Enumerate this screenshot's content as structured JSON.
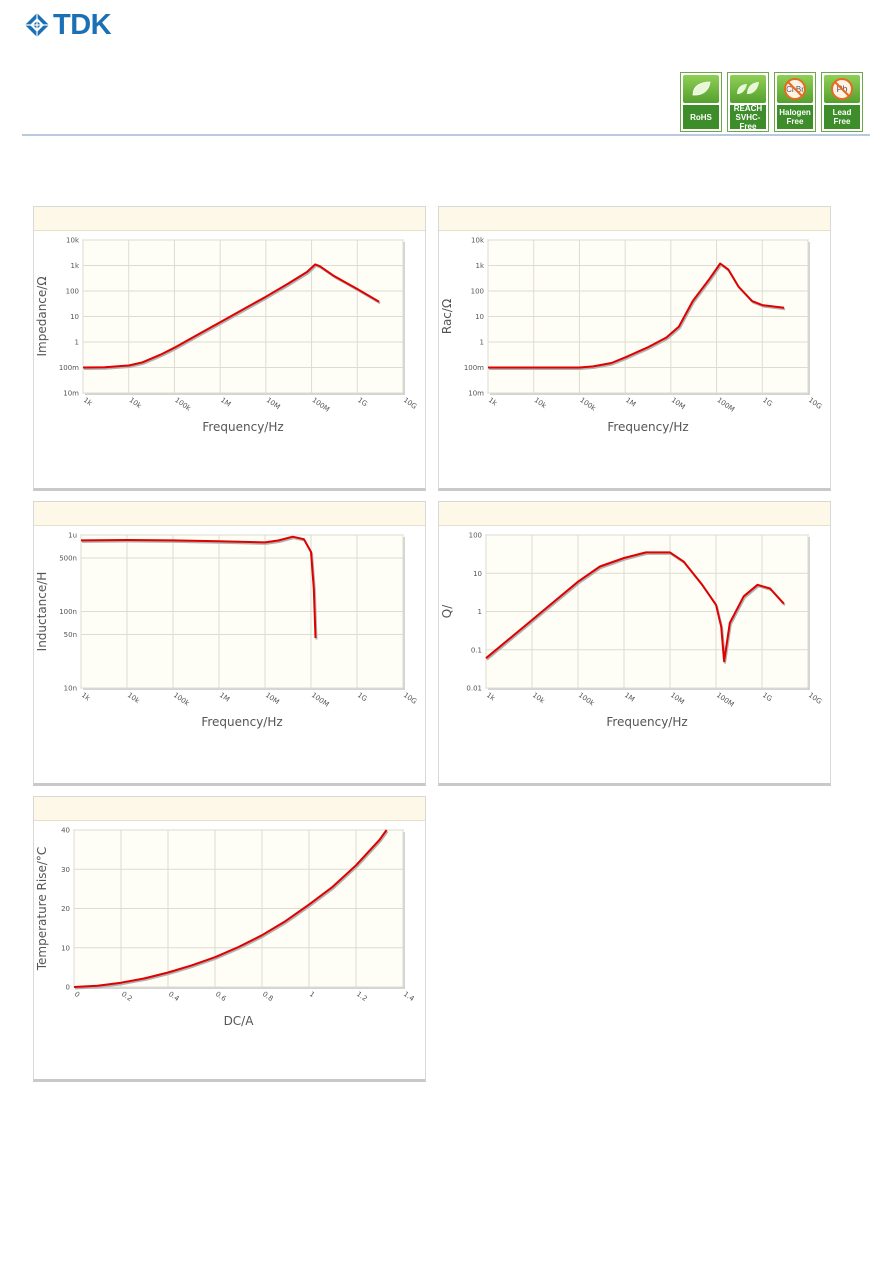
{
  "header": {
    "logo_text": "TDK",
    "brand_color": "#1a6fb5",
    "badges": [
      {
        "label": "RoHS",
        "icon": "leaf-icon"
      },
      {
        "label": "REACH\nSVHC-Free",
        "icon": "leaves-icon"
      },
      {
        "label": "Halogen\nFree",
        "icon": "no-halogen-icon",
        "icon_text": "Cl Br"
      },
      {
        "label": "Lead\nFree",
        "icon": "no-lead-icon",
        "icon_text": "Pb"
      }
    ]
  },
  "chart_data": [
    {
      "type": "line",
      "xscale": "log",
      "yscale": "log",
      "xlabel": "Frequency/Hz",
      "ylabel": "Impedance/Ω",
      "xlim": [
        1000,
        10000000000
      ],
      "ylim": [
        0.01,
        10000
      ],
      "xticks": [
        1000,
        10000,
        100000,
        1000000,
        10000000,
        100000000,
        1000000000,
        10000000000
      ],
      "xtick_labels": [
        "1k",
        "10k",
        "100k",
        "1M",
        "10M",
        "100M",
        "1G",
        "10G"
      ],
      "yticks": [
        0.01,
        0.1,
        1,
        10,
        100,
        1000,
        10000
      ],
      "ytick_labels": [
        "10m",
        "100m",
        "1",
        "10",
        "100",
        "1k",
        "10k"
      ],
      "series": [
        {
          "color": "#e00000",
          "x": [
            1000,
            3000,
            10000,
            20000,
            50000,
            100000,
            300000,
            1000000,
            3000000,
            10000000,
            30000000,
            80000000,
            120000000,
            150000000,
            300000000,
            1000000000,
            3000000000
          ],
          "y": [
            0.1,
            0.102,
            0.12,
            0.16,
            0.32,
            0.6,
            1.8,
            6,
            18,
            60,
            190,
            560,
            1100,
            950,
            400,
            120,
            38
          ]
        }
      ]
    },
    {
      "type": "line",
      "xscale": "log",
      "yscale": "log",
      "xlabel": "Frequency/Hz",
      "ylabel": "Rac/Ω",
      "xlim": [
        1000,
        10000000000
      ],
      "ylim": [
        0.01,
        10000
      ],
      "xticks": [
        1000,
        10000,
        100000,
        1000000,
        10000000,
        100000000,
        1000000000,
        10000000000
      ],
      "xtick_labels": [
        "1k",
        "10k",
        "100k",
        "1M",
        "10M",
        "100M",
        "1G",
        "10G"
      ],
      "yticks": [
        0.01,
        0.1,
        1,
        10,
        100,
        1000,
        10000
      ],
      "ytick_labels": [
        "10m",
        "100m",
        "1",
        "10",
        "100",
        "1k",
        "10k"
      ],
      "series": [
        {
          "color": "#e00000",
          "x": [
            1000,
            10000,
            100000,
            200000,
            500000,
            1000000,
            3000000,
            8000000,
            15000000,
            30000000,
            70000000,
            120000000,
            180000000,
            300000000,
            600000000,
            1000000000,
            3000000000
          ],
          "y": [
            0.1,
            0.1,
            0.1,
            0.11,
            0.15,
            0.25,
            0.6,
            1.5,
            4,
            40,
            300,
            1200,
            700,
            150,
            40,
            28,
            22
          ]
        }
      ]
    },
    {
      "type": "line",
      "xscale": "log",
      "yscale": "log",
      "xlabel": "Frequency/Hz",
      "ylabel": "Inductance/H",
      "xlim": [
        1000,
        10000000000
      ],
      "ylim": [
        1e-08,
        1e-06
      ],
      "xticks": [
        1000,
        10000,
        100000,
        1000000,
        10000000,
        100000000,
        1000000000,
        10000000000
      ],
      "xtick_labels": [
        "1k",
        "10k",
        "100k",
        "1M",
        "10M",
        "100M",
        "1G",
        "10G"
      ],
      "yticks": [
        1e-08,
        5e-08,
        1e-07,
        5e-07,
        1e-06
      ],
      "ytick_labels": [
        "10n",
        "50n",
        "100n",
        "500n",
        "1u"
      ],
      "series": [
        {
          "color": "#e00000",
          "x": [
            1000,
            10000,
            100000,
            1000000,
            10000000,
            20000000,
            40000000,
            70000000,
            100000000,
            115000000,
            125000000
          ],
          "y": [
            8.5e-07,
            8.6e-07,
            8.5e-07,
            8.3e-07,
            8e-07,
            8.5e-07,
            9.5e-07,
            8.8e-07,
            6e-07,
            2e-07,
            4.5e-08
          ]
        }
      ]
    },
    {
      "type": "line",
      "xscale": "log",
      "yscale": "log",
      "xlabel": "Frequency/Hz",
      "ylabel": "Q/",
      "xlim": [
        1000,
        10000000000
      ],
      "ylim": [
        0.01,
        100
      ],
      "xticks": [
        1000,
        10000,
        100000,
        1000000,
        10000000,
        100000000,
        1000000000,
        10000000000
      ],
      "xtick_labels": [
        "1k",
        "10k",
        "100k",
        "1M",
        "10M",
        "100M",
        "1G",
        "10G"
      ],
      "yticks": [
        0.01,
        0.1,
        1,
        10,
        100
      ],
      "ytick_labels": [
        "0.01",
        "0.1",
        "1",
        "10",
        "100"
      ],
      "series": [
        {
          "color": "#e00000",
          "x": [
            1000,
            10000,
            100000,
            300000,
            1000000,
            3000000,
            10000000,
            20000000,
            50000000,
            100000000,
            130000000,
            150000000,
            200000000,
            400000000,
            800000000,
            1500000000,
            3000000000
          ],
          "y": [
            0.06,
            0.6,
            6,
            15,
            25,
            35,
            35,
            20,
            5,
            1.5,
            0.4,
            0.05,
            0.5,
            2.5,
            5,
            4,
            1.6
          ]
        }
      ]
    },
    {
      "type": "line",
      "xscale": "linear",
      "yscale": "linear",
      "xlabel": "DC/A",
      "ylabel": "Temperature Rise/°C",
      "xlim": [
        0,
        1.4
      ],
      "ylim": [
        0,
        40
      ],
      "xticks": [
        0,
        0.2,
        0.4,
        0.6,
        0.8,
        1,
        1.2,
        1.4
      ],
      "xtick_labels": [
        "0",
        "0.2",
        "0.4",
        "0.6",
        "0.8",
        "1",
        "1.2",
        "1.4"
      ],
      "yticks": [
        0,
        10,
        20,
        30,
        40
      ],
      "ytick_labels": [
        "0",
        "10",
        "20",
        "30",
        "40"
      ],
      "series": [
        {
          "color": "#e00000",
          "x": [
            0,
            0.1,
            0.2,
            0.3,
            0.4,
            0.5,
            0.6,
            0.7,
            0.8,
            0.9,
            1.0,
            1.1,
            1.2,
            1.3,
            1.33
          ],
          "y": [
            0,
            0.3,
            1.1,
            2.2,
            3.7,
            5.5,
            7.6,
            10.2,
            13.2,
            16.8,
            21,
            25.5,
            31,
            37.5,
            40
          ]
        }
      ]
    }
  ]
}
